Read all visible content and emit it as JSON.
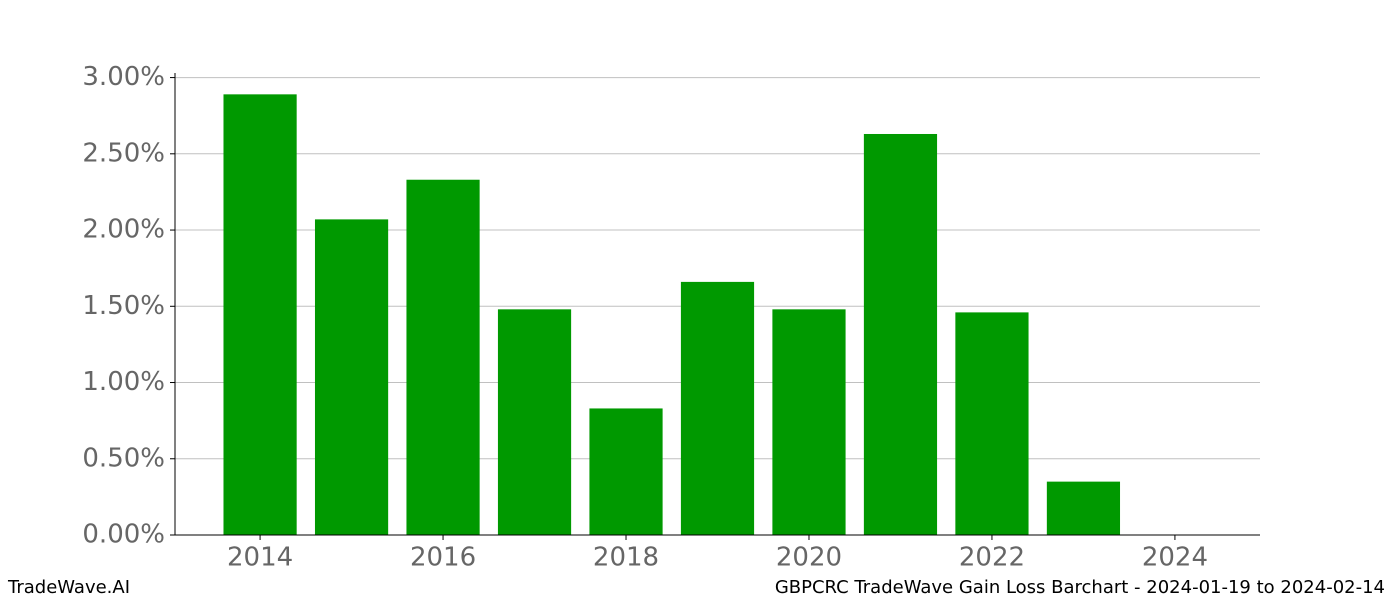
{
  "chart_data": {
    "type": "bar",
    "x": [
      2014,
      2015,
      2016,
      2017,
      2018,
      2019,
      2020,
      2021,
      2022,
      2023
    ],
    "values": [
      2.89,
      2.07,
      2.33,
      1.48,
      0.83,
      1.66,
      1.48,
      2.63,
      1.46,
      0.35
    ],
    "color": "#009900",
    "xlim": [
      2013.07,
      2024.93
    ],
    "xticks": [
      2014,
      2016,
      2018,
      2020,
      2022,
      2024
    ],
    "ylim": [
      0,
      3.03
    ],
    "yticks": [
      {
        "value": 0,
        "label": "0.00%"
      },
      {
        "value": 0.5,
        "label": "0.50%"
      },
      {
        "value": 1,
        "label": "1.00%"
      },
      {
        "value": 1.5,
        "label": "1.50%"
      },
      {
        "value": 2,
        "label": "2.00%"
      },
      {
        "value": 2.5,
        "label": "2.50%"
      },
      {
        "value": 3,
        "label": "3.00%"
      }
    ],
    "grid": true,
    "watermark": "TradeWave.AI",
    "footer": "GBPCRC TradeWave Gain Loss Barchart - 2024-01-19 to 2024-02-14"
  }
}
